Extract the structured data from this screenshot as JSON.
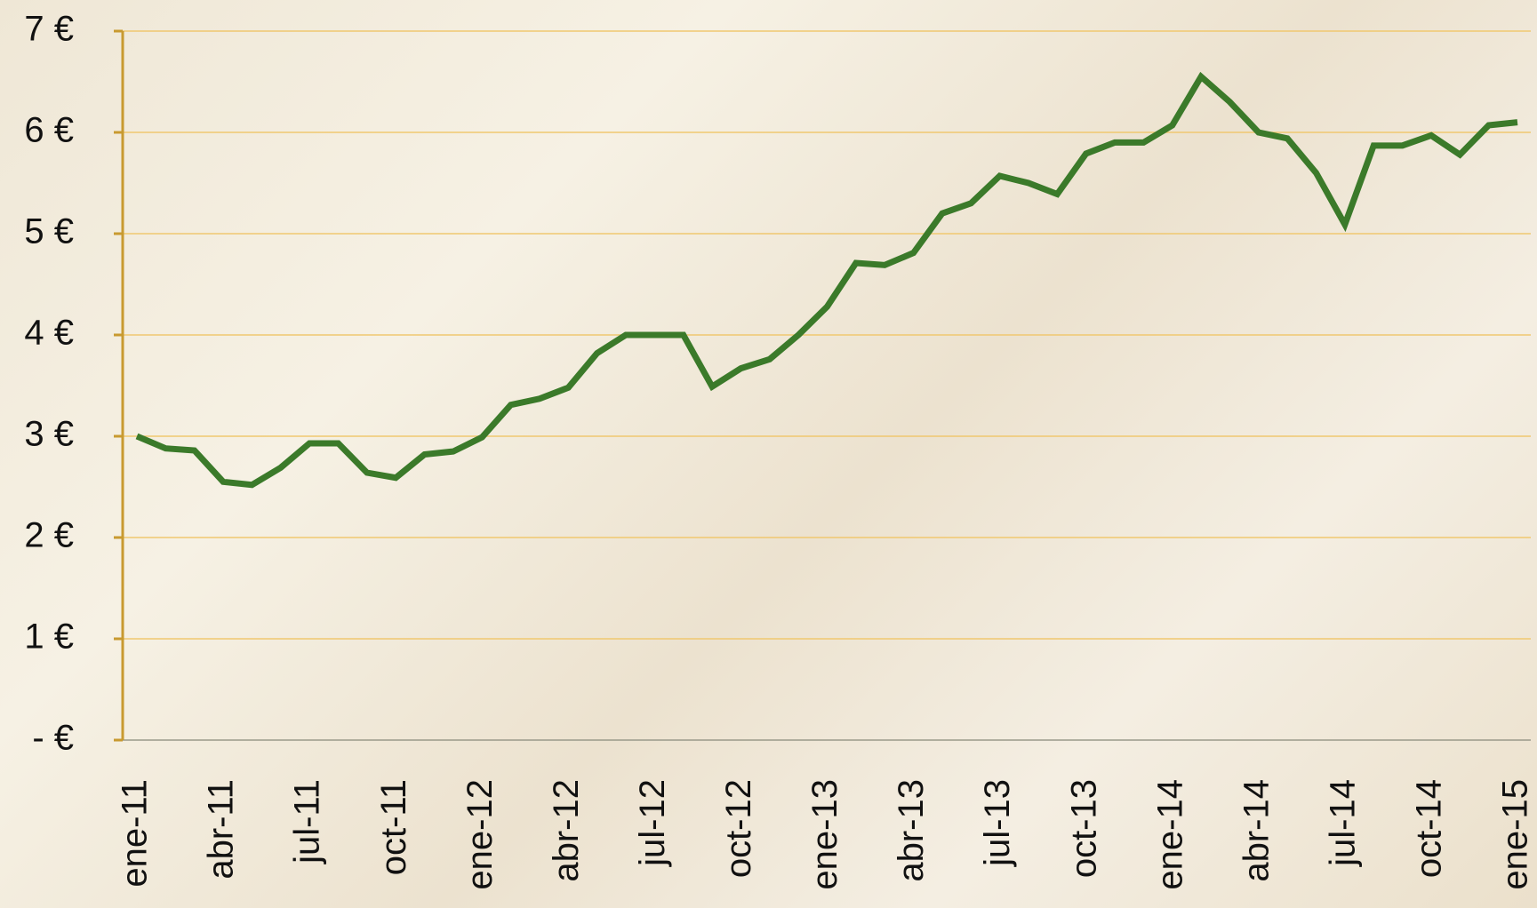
{
  "chart_data": {
    "type": "line",
    "categories": [
      "ene-11",
      null,
      null,
      "abr-11",
      null,
      null,
      "jul-11",
      null,
      null,
      "oct-11",
      null,
      null,
      "ene-12",
      null,
      null,
      "abr-12",
      null,
      null,
      "jul-12",
      null,
      null,
      "oct-12",
      null,
      null,
      "ene-13",
      null,
      null,
      "abr-13",
      null,
      null,
      "jul-13",
      null,
      null,
      "oct-13",
      null,
      null,
      "ene-14",
      null,
      null,
      "abr-14",
      null,
      null,
      "jul-14",
      null,
      null,
      "oct-14",
      null,
      null,
      "ene-15"
    ],
    "series": [
      {
        "color": "#3b7a2a",
        "values": [
          3.0,
          2.88,
          2.86,
          2.55,
          2.52,
          2.69,
          2.93,
          2.93,
          2.64,
          2.59,
          2.82,
          2.85,
          2.99,
          3.31,
          3.37,
          3.48,
          3.82,
          4.0,
          4.0,
          4.0,
          3.49,
          3.67,
          3.76,
          4.0,
          4.28,
          4.71,
          4.69,
          4.81,
          5.2,
          5.3,
          5.57,
          5.5,
          5.39,
          5.79,
          5.9,
          5.9,
          6.07,
          6.55,
          6.3,
          6.0,
          5.94,
          5.6,
          5.09,
          5.87,
          5.87,
          5.97,
          5.78,
          6.07,
          6.1
        ]
      }
    ],
    "ylim": [
      0,
      7
    ],
    "yticks": [
      {
        "value": 0,
        "label": "- €"
      },
      {
        "value": 1,
        "label": "1 €"
      },
      {
        "value": 2,
        "label": "2 €"
      },
      {
        "value": 3,
        "label": "3 €"
      },
      {
        "value": 4,
        "label": "4 €"
      },
      {
        "value": 5,
        "label": "5 €"
      },
      {
        "value": 6,
        "label": "6 €"
      },
      {
        "value": 7,
        "label": "7 €"
      }
    ],
    "grid": true
  }
}
